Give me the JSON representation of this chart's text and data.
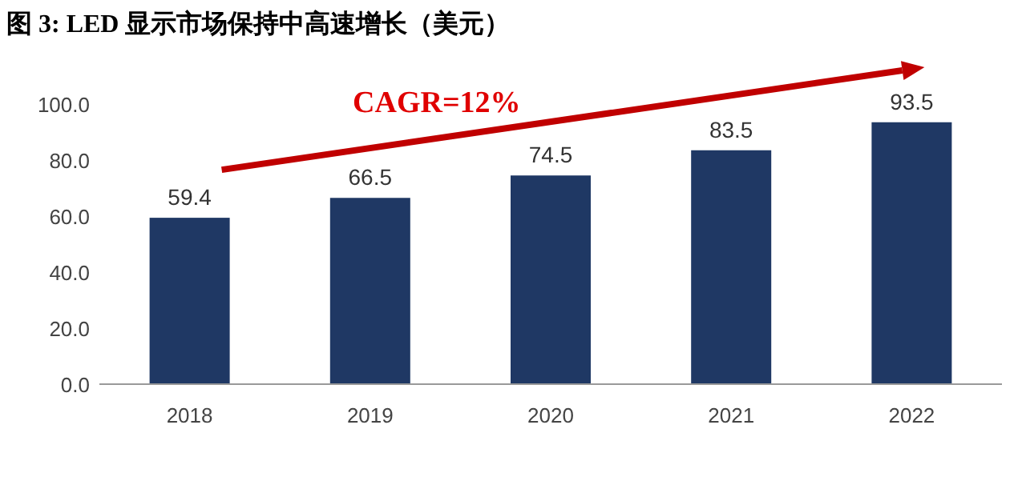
{
  "chart_data": {
    "type": "bar",
    "title": "图 3:  LED 显示市场保持中高速增长（美元）",
    "categories": [
      "2018",
      "2019",
      "2020",
      "2021",
      "2022"
    ],
    "values": [
      59.4,
      66.5,
      74.5,
      83.5,
      93.5
    ],
    "color": "#1f3864",
    "ylim": [
      0,
      100
    ],
    "yticks": [
      {
        "value": 0,
        "label": "0.0"
      },
      {
        "value": 20,
        "label": "20.0"
      },
      {
        "value": 40,
        "label": "40.0"
      },
      {
        "value": 60,
        "label": "60.0"
      },
      {
        "value": 80,
        "label": "80.0"
      },
      {
        "value": 100,
        "label": "100.0"
      }
    ],
    "data_labels": true,
    "annotations": [
      "CAGR=12%"
    ]
  }
}
